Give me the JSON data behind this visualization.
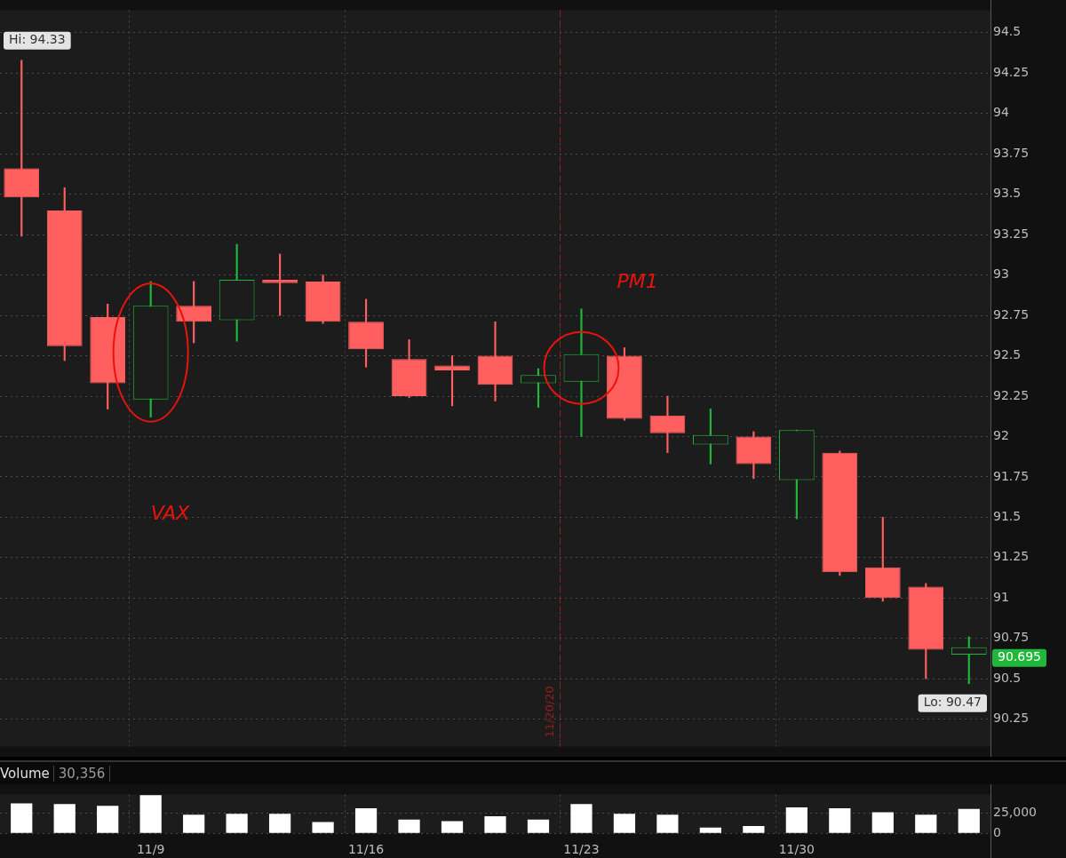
{
  "chart_data": [
    {
      "type": "candlestick",
      "categories": [
        null,
        null,
        null,
        "11/9",
        null,
        null,
        null,
        null,
        "11/16",
        null,
        null,
        null,
        null,
        "11/23",
        null,
        null,
        null,
        null,
        "11/30",
        null,
        null,
        null,
        null
      ],
      "ohlc": [
        [
          93.66,
          94.33,
          93.24,
          93.48
        ],
        [
          93.4,
          93.54,
          92.47,
          92.56
        ],
        [
          92.74,
          92.82,
          92.17,
          92.33
        ],
        [
          92.23,
          92.96,
          92.12,
          92.81
        ],
        [
          92.81,
          92.96,
          92.58,
          92.71
        ],
        [
          92.72,
          93.19,
          92.59,
          92.97
        ],
        [
          92.97,
          93.13,
          92.75,
          92.95
        ],
        [
          92.96,
          93.0,
          92.7,
          92.71
        ],
        [
          92.71,
          92.85,
          92.43,
          92.54
        ],
        [
          92.48,
          92.6,
          92.24,
          92.25
        ],
        [
          92.44,
          92.5,
          92.19,
          92.41
        ],
        [
          92.5,
          92.71,
          92.22,
          92.32
        ],
        [
          92.33,
          92.42,
          92.18,
          92.38
        ],
        [
          92.34,
          92.79,
          92.0,
          92.51
        ],
        [
          92.5,
          92.55,
          92.1,
          92.11
        ],
        [
          92.13,
          92.25,
          91.9,
          92.02
        ],
        [
          91.95,
          92.17,
          91.83,
          92.01
        ],
        [
          92.0,
          92.03,
          91.74,
          91.83
        ],
        [
          91.73,
          92.04,
          91.49,
          92.04
        ],
        [
          91.9,
          91.91,
          91.14,
          91.16
        ],
        [
          91.19,
          91.5,
          90.98,
          91.0
        ],
        [
          91.07,
          91.09,
          90.5,
          90.68
        ],
        [
          90.65,
          90.76,
          90.47,
          90.695
        ]
      ],
      "colors": [
        "#ff5f5f",
        "#ff5f5f",
        "#ff5f5f",
        "#1fb83a",
        "#ff5f5f",
        "#1fb83a",
        "#ff5f5f",
        "#ff5f5f",
        "#ff5f5f",
        "#ff5f5f",
        "#ff5f5f",
        "#ff5f5f",
        "#1fb83a",
        "#1fb83a",
        "#ff5f5f",
        "#ff5f5f",
        "#1fb83a",
        "#ff5f5f",
        "#1fb83a",
        "#ff5f5f",
        "#ff5f5f",
        "#ff5f5f",
        "#1fb83a"
      ],
      "ylim": [
        90.08,
        94.64
      ],
      "yticks": [
        90.25,
        90.5,
        90.75,
        91,
        91.25,
        91.5,
        91.75,
        92,
        92.25,
        92.5,
        92.75,
        93,
        93.25,
        93.5,
        93.75,
        94,
        94.25,
        94.5
      ],
      "grid": true,
      "tick_labels": "y",
      "ref_lines": [
        {
          "axis": "x",
          "value": "11/23",
          "label": "11/20/20",
          "color": "#9b1c1c",
          "line_style": "dashed"
        }
      ],
      "annotations": [
        "Hi: 94.33",
        "Lo: 90.47",
        "90.695",
        "VAX",
        "PM1"
      ]
    },
    {
      "type": "bar",
      "title": "Volume",
      "categories": [
        null,
        null,
        null,
        "11/9",
        null,
        null,
        null,
        null,
        "11/16",
        null,
        null,
        null,
        null,
        "11/23",
        null,
        null,
        null,
        null,
        "11/30",
        null,
        null,
        null,
        null
      ],
      "values": [
        37000,
        36000,
        34000,
        47000,
        23000,
        24000,
        24000,
        14000,
        31000,
        17000,
        15000,
        21000,
        17000,
        36000,
        24000,
        23000,
        7000,
        9000,
        32000,
        31000,
        26000,
        23000,
        30000
      ],
      "color": "#ffffff",
      "ylim": [
        0,
        48000
      ],
      "yticks": [
        0,
        {
          "value": 25000,
          "label": "25,000"
        }
      ],
      "grid": true,
      "annotations": [
        "30,356"
      ]
    }
  ]
}
